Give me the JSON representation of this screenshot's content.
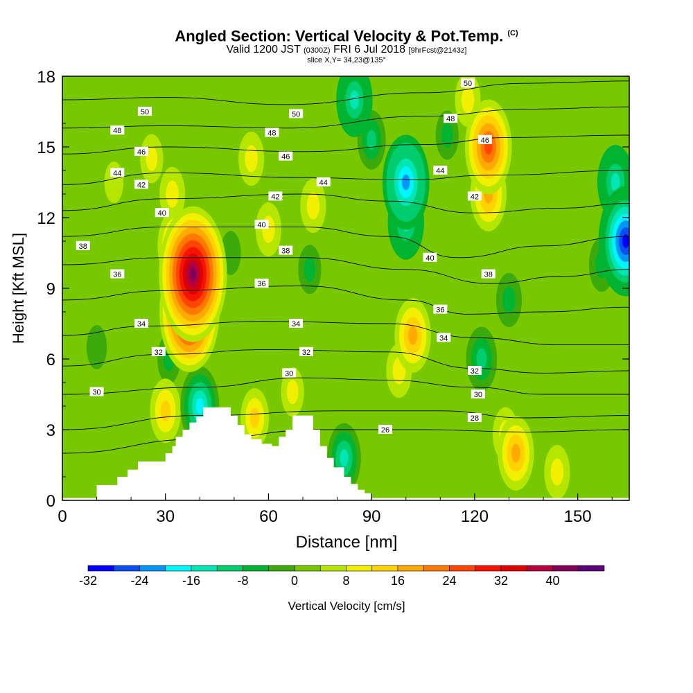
{
  "header": {
    "title": "Angled Section: Vertical Velocity & Pot.Temp.",
    "title_mark": "(C)",
    "valid_prefix": "Valid 1200 JST",
    "valid_utc": "(0300Z)",
    "valid_date": "FRI 6 Jul 2018",
    "forecast": "[9hrFcst@2143z]",
    "slice": "slice X,Y= 34,23@135°"
  },
  "chart_data": {
    "type": "heatmap",
    "xlabel": "Distance [nm]",
    "ylabel": "Height [Kft MSL]",
    "xlim": [
      0,
      165
    ],
    "ylim": [
      0,
      18
    ],
    "x_ticks": [
      0,
      30,
      60,
      90,
      120,
      150
    ],
    "y_ticks": [
      0,
      3,
      6,
      9,
      12,
      15,
      18
    ],
    "colorbar": {
      "label": "Vertical Velocity [cm/s]",
      "tick_labels": [
        "-32",
        "-24",
        "-16",
        "-8",
        "0",
        "8",
        "16",
        "24",
        "32",
        "40"
      ],
      "range": [
        -32,
        44
      ],
      "colors": [
        "#0000ff",
        "#0a4ff0",
        "#0096f5",
        "#00f5ff",
        "#00e6b4",
        "#00cd6e",
        "#00b432",
        "#3caa0a",
        "#78c800",
        "#b4e600",
        "#f0f000",
        "#ffd200",
        "#ffaa00",
        "#ff7800",
        "#ff4600",
        "#f51400",
        "#dc0000",
        "#b4003c",
        "#82005a",
        "#5a0078"
      ]
    },
    "vertical_velocity_features": [
      {
        "x": 38,
        "height": 9.6,
        "value": 40
      },
      {
        "x": 37,
        "height": 8.0,
        "value": 34
      },
      {
        "x": 33,
        "height": 10.8,
        "value": 16
      },
      {
        "x": 32,
        "height": 13.0,
        "value": 8
      },
      {
        "x": 26,
        "height": 14.5,
        "value": 6
      },
      {
        "x": 55,
        "height": 14.5,
        "value": 8
      },
      {
        "x": 60,
        "height": 11.5,
        "value": 8
      },
      {
        "x": 49,
        "height": 10.5,
        "value": -4
      },
      {
        "x": 31,
        "height": 6.0,
        "value": -6
      },
      {
        "x": 48,
        "height": 9.0,
        "value": 2
      },
      {
        "x": 100,
        "height": 13.5,
        "value": -24
      },
      {
        "x": 100,
        "height": 11.8,
        "value": -16
      },
      {
        "x": 85,
        "height": 17.0,
        "value": -16
      },
      {
        "x": 90,
        "height": 15.3,
        "value": -10
      },
      {
        "x": 124,
        "height": 15.0,
        "value": 24
      },
      {
        "x": 124,
        "height": 13.0,
        "value": 16
      },
      {
        "x": 118,
        "height": 17.0,
        "value": 8
      },
      {
        "x": 102,
        "height": 7.0,
        "value": 16
      },
      {
        "x": 98,
        "height": 5.5,
        "value": 8
      },
      {
        "x": 122,
        "height": 6.0,
        "value": -12
      },
      {
        "x": 130,
        "height": 8.5,
        "value": -8
      },
      {
        "x": 164,
        "height": 11.0,
        "value": -30
      },
      {
        "x": 161,
        "height": 13.5,
        "value": -16
      },
      {
        "x": 157,
        "height": 10.0,
        "value": -8
      },
      {
        "x": 132,
        "height": 2.0,
        "value": 16
      },
      {
        "x": 129,
        "height": 2.8,
        "value": 8
      },
      {
        "x": 144,
        "height": 1.2,
        "value": 8
      },
      {
        "x": 73,
        "height": 12.5,
        "value": 8
      },
      {
        "x": 72,
        "height": 9.8,
        "value": -6
      },
      {
        "x": 15,
        "height": 13.5,
        "value": 3
      },
      {
        "x": 40,
        "height": 4.0,
        "value": -18
      },
      {
        "x": 82,
        "height": 1.8,
        "value": -14
      },
      {
        "x": 30,
        "height": 3.8,
        "value": 12
      },
      {
        "x": 56,
        "height": 3.5,
        "value": 10
      },
      {
        "x": 67,
        "height": 4.6,
        "value": 6
      },
      {
        "x": 10,
        "height": 6.5,
        "value": -4
      },
      {
        "x": 112,
        "height": 15.5,
        "value": -6
      },
      {
        "x": 77,
        "height": 15.0,
        "value": 2
      }
    ],
    "potential_temperature_contours": [
      {
        "label": "26",
        "points": [
          [
            0,
            2.0
          ],
          [
            40,
            2.6
          ],
          [
            75,
            3.0
          ],
          [
            105,
            3.0
          ],
          [
            135,
            2.9
          ],
          [
            165,
            3.0
          ]
        ]
      },
      {
        "label": "28",
        "points": [
          [
            0,
            3.0
          ],
          [
            40,
            3.6
          ],
          [
            80,
            3.8
          ],
          [
            110,
            3.8
          ],
          [
            135,
            3.5
          ],
          [
            165,
            3.6
          ]
        ]
      },
      {
        "label": "30",
        "points": [
          [
            0,
            4.5
          ],
          [
            40,
            4.8
          ],
          [
            70,
            5.2
          ],
          [
            95,
            5.1
          ],
          [
            120,
            4.8
          ],
          [
            140,
            4.5
          ],
          [
            165,
            4.5
          ]
        ]
      },
      {
        "label": "32",
        "points": [
          [
            0,
            5.7
          ],
          [
            30,
            6.2
          ],
          [
            60,
            6.4
          ],
          [
            95,
            6.3
          ],
          [
            120,
            5.6
          ],
          [
            140,
            5.4
          ],
          [
            165,
            5.5
          ]
        ]
      },
      {
        "label": "34",
        "points": [
          [
            0,
            7.0
          ],
          [
            25,
            7.4
          ],
          [
            60,
            7.6
          ],
          [
            95,
            7.5
          ],
          [
            120,
            6.9
          ],
          [
            145,
            6.6
          ],
          [
            165,
            6.6
          ]
        ]
      },
      {
        "label": "36",
        "points": [
          [
            0,
            8.5
          ],
          [
            30,
            8.9
          ],
          [
            70,
            9.1
          ],
          [
            100,
            8.5
          ],
          [
            118,
            7.9
          ],
          [
            140,
            8.0
          ],
          [
            165,
            8.2
          ]
        ]
      },
      {
        "label": "38",
        "points": [
          [
            0,
            10.0
          ],
          [
            30,
            10.3
          ],
          [
            70,
            10.3
          ],
          [
            100,
            9.8
          ],
          [
            125,
            9.2
          ],
          [
            145,
            9.5
          ],
          [
            165,
            9.8
          ]
        ]
      },
      {
        "label": "40",
        "points": [
          [
            0,
            11.2
          ],
          [
            30,
            11.6
          ],
          [
            70,
            11.6
          ],
          [
            95,
            11.2
          ],
          [
            115,
            10.3
          ],
          [
            140,
            10.8
          ],
          [
            165,
            11.2
          ]
        ]
      },
      {
        "label": "42",
        "points": [
          [
            0,
            12.3
          ],
          [
            30,
            12.8
          ],
          [
            70,
            13.0
          ],
          [
            95,
            12.7
          ],
          [
            120,
            12.2
          ],
          [
            145,
            12.4
          ],
          [
            165,
            12.6
          ]
        ]
      },
      {
        "label": "44",
        "points": [
          [
            0,
            13.4
          ],
          [
            30,
            13.9
          ],
          [
            70,
            13.7
          ],
          [
            100,
            13.6
          ],
          [
            125,
            13.8
          ],
          [
            165,
            14.0
          ]
        ]
      },
      {
        "label": "46",
        "points": [
          [
            0,
            14.7
          ],
          [
            30,
            15.0
          ],
          [
            70,
            14.8
          ],
          [
            105,
            15.1
          ],
          [
            130,
            15.4
          ],
          [
            165,
            15.5
          ]
        ]
      },
      {
        "label": "48",
        "points": [
          [
            0,
            15.8
          ],
          [
            30,
            15.9
          ],
          [
            65,
            15.8
          ],
          [
            105,
            16.3
          ],
          [
            135,
            16.6
          ],
          [
            165,
            16.7
          ]
        ]
      },
      {
        "label": "50",
        "points": [
          [
            0,
            17.0
          ],
          [
            30,
            17.1
          ],
          [
            65,
            16.8
          ],
          [
            105,
            17.3
          ],
          [
            135,
            17.7
          ],
          [
            165,
            17.8
          ]
        ]
      }
    ],
    "contour_labels": [
      {
        "text": "50",
        "x": 24,
        "y": 16.5
      },
      {
        "text": "50",
        "x": 68,
        "y": 16.4
      },
      {
        "text": "50",
        "x": 118,
        "y": 17.7
      },
      {
        "text": "48",
        "x": 16,
        "y": 15.7
      },
      {
        "text": "48",
        "x": 61,
        "y": 15.6
      },
      {
        "text": "48",
        "x": 113,
        "y": 16.2
      },
      {
        "text": "46",
        "x": 23,
        "y": 14.8
      },
      {
        "text": "46",
        "x": 65,
        "y": 14.6
      },
      {
        "text": "46",
        "x": 123,
        "y": 15.3
      },
      {
        "text": "44",
        "x": 16,
        "y": 13.9
      },
      {
        "text": "44",
        "x": 76,
        "y": 13.5
      },
      {
        "text": "44",
        "x": 110,
        "y": 14.0
      },
      {
        "text": "42",
        "x": 23,
        "y": 13.4
      },
      {
        "text": "42",
        "x": 62,
        "y": 12.9
      },
      {
        "text": "42",
        "x": 120,
        "y": 12.9
      },
      {
        "text": "40",
        "x": 29,
        "y": 12.2
      },
      {
        "text": "40",
        "x": 58,
        "y": 11.7
      },
      {
        "text": "40",
        "x": 107,
        "y": 10.3
      },
      {
        "text": "38",
        "x": 6,
        "y": 10.8
      },
      {
        "text": "38",
        "x": 65,
        "y": 10.6
      },
      {
        "text": "38",
        "x": 124,
        "y": 9.6
      },
      {
        "text": "36",
        "x": 16,
        "y": 9.6
      },
      {
        "text": "36",
        "x": 58,
        "y": 9.2
      },
      {
        "text": "36",
        "x": 110,
        "y": 8.1
      },
      {
        "text": "34",
        "x": 23,
        "y": 7.5
      },
      {
        "text": "34",
        "x": 68,
        "y": 7.5
      },
      {
        "text": "34",
        "x": 111,
        "y": 6.9
      },
      {
        "text": "32",
        "x": 28,
        "y": 6.3
      },
      {
        "text": "32",
        "x": 71,
        "y": 6.3
      },
      {
        "text": "32",
        "x": 120,
        "y": 5.5
      },
      {
        "text": "30",
        "x": 10,
        "y": 4.6
      },
      {
        "text": "30",
        "x": 66,
        "y": 5.4
      },
      {
        "text": "30",
        "x": 121,
        "y": 4.5
      },
      {
        "text": "28",
        "x": 120,
        "y": 3.5
      },
      {
        "text": "26",
        "x": 94,
        "y": 3.0
      }
    ],
    "terrain": [
      [
        0,
        0.1
      ],
      [
        9,
        0.1
      ],
      [
        10,
        0.65
      ],
      [
        14,
        0.65
      ],
      [
        16,
        1.0
      ],
      [
        19,
        1.3
      ],
      [
        22,
        1.65
      ],
      [
        27,
        1.65
      ],
      [
        30,
        2.0
      ],
      [
        32,
        2.3
      ],
      [
        33,
        2.7
      ],
      [
        35,
        3.0
      ],
      [
        37,
        3.3
      ],
      [
        39,
        3.55
      ],
      [
        41,
        3.95
      ],
      [
        47,
        3.95
      ],
      [
        49,
        3.6
      ],
      [
        51,
        3.2
      ],
      [
        53,
        2.8
      ],
      [
        55,
        2.6
      ],
      [
        58,
        2.4
      ],
      [
        61,
        2.3
      ],
      [
        63,
        2.7
      ],
      [
        65,
        3.0
      ],
      [
        67,
        3.6
      ],
      [
        71,
        3.6
      ],
      [
        73,
        3.0
      ],
      [
        75,
        2.3
      ],
      [
        77,
        1.8
      ],
      [
        79,
        1.4
      ],
      [
        82,
        1.0
      ],
      [
        84,
        0.7
      ],
      [
        86,
        0.45
      ],
      [
        88,
        0.3
      ],
      [
        90,
        0.1
      ],
      [
        165,
        0.1
      ]
    ]
  }
}
